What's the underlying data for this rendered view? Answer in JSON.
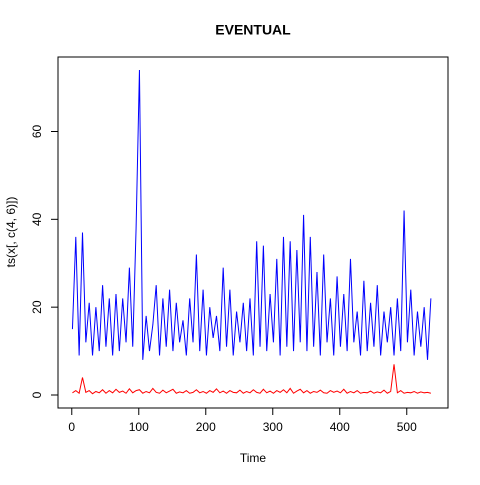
{
  "chart_data": {
    "type": "line",
    "title": "EVENTUAL",
    "x_label": "Time",
    "y_label": "ts(x[, c(4, 6)])",
    "x": [
      1,
      6,
      11,
      16,
      21,
      26,
      31,
      36,
      41,
      46,
      51,
      56,
      61,
      66,
      71,
      76,
      81,
      86,
      91,
      96,
      101,
      106,
      111,
      116,
      121,
      126,
      131,
      136,
      141,
      146,
      151,
      156,
      161,
      166,
      171,
      176,
      181,
      186,
      191,
      196,
      201,
      206,
      211,
      216,
      221,
      226,
      231,
      236,
      241,
      246,
      251,
      256,
      261,
      266,
      271,
      276,
      281,
      286,
      291,
      296,
      301,
      306,
      311,
      316,
      321,
      326,
      331,
      336,
      341,
      346,
      351,
      356,
      361,
      366,
      371,
      376,
      381,
      386,
      391,
      396,
      401,
      406,
      411,
      416,
      421,
      426,
      431,
      436,
      441,
      446,
      451,
      456,
      461,
      466,
      471,
      476,
      481,
      486,
      491,
      496,
      501,
      506,
      511,
      516,
      521,
      526,
      531,
      536
    ],
    "series": [
      {
        "color": "#0000ff",
        "values": [
          15,
          36,
          9,
          37,
          12,
          21,
          9,
          20,
          10,
          25,
          11,
          22,
          9,
          23,
          10,
          22,
          12,
          29,
          11,
          38,
          74,
          8,
          18,
          10,
          16,
          25,
          9,
          22,
          11,
          24,
          10,
          21,
          12,
          17,
          9,
          22,
          12,
          32,
          10,
          24,
          9,
          20,
          13,
          18,
          10,
          29,
          11,
          24,
          9,
          19,
          12,
          21,
          10,
          22,
          9,
          35,
          11,
          34,
          10,
          23,
          12,
          31,
          9,
          36,
          11,
          35,
          10,
          33,
          12,
          41,
          10,
          36,
          11,
          28,
          9,
          32,
          12,
          22,
          9,
          27,
          11,
          23,
          10,
          31,
          12,
          19,
          9,
          26,
          10,
          21,
          11,
          25,
          9,
          19,
          12,
          20,
          9,
          22,
          10,
          42,
          12,
          24,
          9,
          19,
          11,
          20,
          8,
          22
        ]
      },
      {
        "color": "#ff0000",
        "values": [
          0.5,
          1,
          0.4,
          4,
          0.6,
          1,
          0.3,
          0.8,
          0.5,
          1.2,
          0.4,
          1,
          0.5,
          1.3,
          0.6,
          0.9,
          0.4,
          1.4,
          0.5,
          1,
          1.2,
          0.4,
          0.8,
          0.5,
          1.5,
          0.6,
          0.4,
          1.1,
          0.5,
          0.9,
          1.3,
          0.4,
          0.7,
          0.5,
          1,
          0.4,
          0.6,
          1.2,
          0.5,
          0.8,
          0.4,
          1,
          0.6,
          1.4,
          0.5,
          0.9,
          0.4,
          1,
          0.6,
          0.5,
          1.1,
          0.4,
          0.8,
          0.5,
          1.2,
          0.6,
          0.4,
          1.3,
          0.5,
          0.9,
          0.4,
          1,
          0.6,
          1.2,
          0.5,
          1.5,
          0.4,
          0.9,
          1.3,
          0.5,
          1,
          0.4,
          0.8,
          0.6,
          1.1,
          0.5,
          0.4,
          1,
          0.6,
          0.9,
          0.5,
          1.3,
          0.4,
          0.8,
          0.5,
          1,
          0.4,
          0.6,
          0.5,
          0.9,
          0.4,
          0.7,
          0.5,
          1.1,
          0.4,
          0.8,
          7,
          0.5,
          1,
          0.4,
          0.6,
          0.5,
          0.8,
          0.4,
          0.7,
          0.5,
          0.6,
          0.4
        ]
      }
    ],
    "xlim": [
      -20.56,
      561.56
    ],
    "ylim": [
      -2.96,
      76.96
    ],
    "xticks": [
      0,
      100,
      200,
      300,
      400,
      500
    ],
    "yticks": [
      0,
      20,
      40,
      60
    ]
  }
}
